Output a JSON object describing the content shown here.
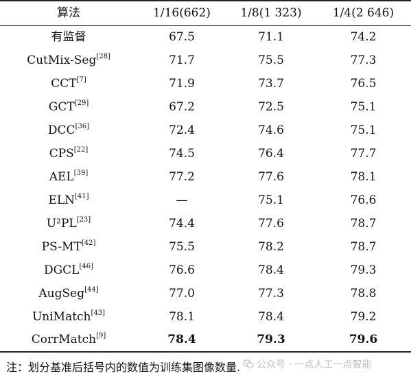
{
  "table": {
    "headers": [
      "算法",
      "1/16(662)",
      "1/8(1 323)",
      "1/4(2 646)"
    ],
    "rows": [
      {
        "method": "有监督",
        "ref": "",
        "v1": "67.5",
        "v2": "71.1",
        "v3": "74.2",
        "bold": [
          false,
          false,
          false
        ]
      },
      {
        "method": "CutMix-Seg",
        "ref": "[28]",
        "v1": "71.7",
        "v2": "75.5",
        "v3": "77.3",
        "bold": [
          false,
          false,
          false
        ]
      },
      {
        "method": "CCT",
        "ref": "[7]",
        "v1": "71.9",
        "v2": "73.7",
        "v3": "76.5",
        "bold": [
          false,
          false,
          false
        ]
      },
      {
        "method": "GCT",
        "ref": "[29]",
        "v1": "67.2",
        "v2": "72.5",
        "v3": "75.1",
        "bold": [
          false,
          false,
          false
        ]
      },
      {
        "method": "DCC",
        "ref": "[36]",
        "v1": "72.4",
        "v2": "74.6",
        "v3": "75.1",
        "bold": [
          false,
          false,
          false
        ]
      },
      {
        "method": "CPS",
        "ref": "[22]",
        "v1": "74.5",
        "v2": "76.4",
        "v3": "77.7",
        "bold": [
          false,
          false,
          false
        ]
      },
      {
        "method": "AEL",
        "ref": "[39]",
        "v1": "77.2",
        "v2": "77.6",
        "v3": "78.1",
        "bold": [
          false,
          false,
          false
        ]
      },
      {
        "method": "ELN",
        "ref": "[41]",
        "v1": "—",
        "v2": "75.1",
        "v3": "76.6",
        "bold": [
          false,
          false,
          false
        ]
      },
      {
        "method": "U²PL",
        "ref": "[23]",
        "v1": "74.4",
        "v2": "77.6",
        "v3": "78.7",
        "bold": [
          false,
          false,
          false
        ]
      },
      {
        "method": "PS-MT",
        "ref": "[42]",
        "v1": "75.5",
        "v2": "78.2",
        "v3": "78.7",
        "bold": [
          false,
          false,
          false
        ]
      },
      {
        "method": "DGCL",
        "ref": "[46]",
        "v1": "76.6",
        "v2": "78.4",
        "v3": "79.3",
        "bold": [
          false,
          false,
          false
        ]
      },
      {
        "method": "AugSeg",
        "ref": "[44]",
        "v1": "77.0",
        "v2": "77.3",
        "v3": "78.8",
        "bold": [
          false,
          false,
          false
        ]
      },
      {
        "method": "UniMatch",
        "ref": "[43]",
        "v1": "78.1",
        "v2": "78.4",
        "v3": "79.2",
        "bold": [
          false,
          false,
          false
        ]
      },
      {
        "method": "CorrMatch",
        "ref": "[9]",
        "v1": "78.4",
        "v2": "79.3",
        "v3": "79.6",
        "bold": [
          true,
          true,
          true
        ]
      }
    ]
  },
  "footnote": "注：划分基准后括号内的数值为训练集图像数量.",
  "watermark": {
    "text": "公众号 · 一点人工一点智能",
    "icon": "wechat-icon"
  }
}
